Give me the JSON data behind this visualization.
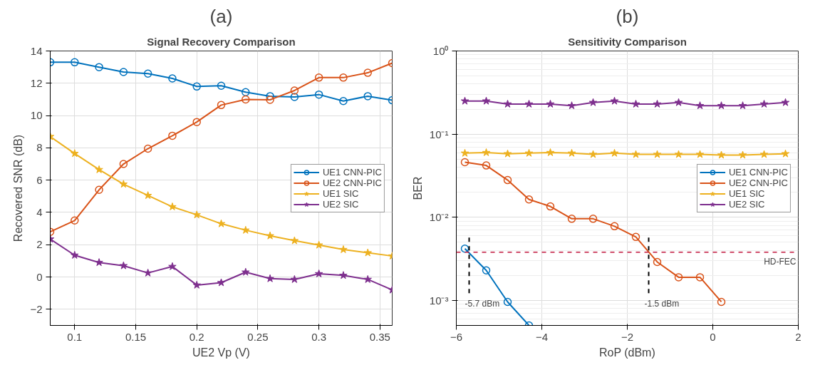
{
  "chart_data": [
    {
      "type": "line",
      "title": "(a)",
      "subtitle": "Signal Recovery Comparison",
      "xlabel": "UE2 Vp (V)",
      "ylabel": "Recovered SNR (dB)",
      "x": [
        0.08,
        0.1,
        0.12,
        0.14,
        0.16,
        0.18,
        0.2,
        0.22,
        0.24,
        0.26,
        0.28,
        0.3,
        0.32,
        0.34,
        0.36
      ],
      "series": [
        {
          "name": "UE1 CNN-PIC",
          "color": "#0072bd",
          "marker": "circle",
          "values": [
            13.3,
            13.3,
            13.0,
            12.7,
            12.6,
            12.3,
            11.8,
            11.85,
            11.45,
            11.2,
            11.15,
            11.3,
            10.9,
            11.2,
            10.95
          ]
        },
        {
          "name": "UE2 CNN-PIC",
          "color": "#d95319",
          "marker": "circle",
          "values": [
            2.8,
            3.5,
            5.4,
            7.0,
            7.95,
            8.75,
            9.6,
            10.65,
            11.0,
            10.98,
            11.55,
            12.35,
            12.35,
            12.65,
            13.25
          ]
        },
        {
          "name": "UE1 SIC",
          "color": "#edb120",
          "marker": "star",
          "values": [
            8.7,
            7.65,
            6.65,
            5.75,
            5.05,
            4.35,
            3.85,
            3.3,
            2.9,
            2.55,
            2.25,
            1.98,
            1.7,
            1.5,
            1.3
          ]
        },
        {
          "name": "UE2 SIC",
          "color": "#7e2f8e",
          "marker": "star",
          "values": [
            2.35,
            1.35,
            0.9,
            0.7,
            0.25,
            0.65,
            -0.5,
            -0.35,
            0.3,
            -0.1,
            -0.15,
            0.2,
            0.1,
            -0.15,
            -0.8
          ]
        }
      ],
      "xlim": [
        0.08,
        0.36
      ],
      "xticks": [
        0.1,
        0.15,
        0.2,
        0.25,
        0.3,
        0.35
      ],
      "ylim": [
        -3,
        14
      ],
      "yticks": [
        -2,
        0,
        2,
        4,
        6,
        8,
        10,
        12,
        14
      ],
      "grid": true,
      "legend": "right",
      "line_style": "solid"
    },
    {
      "type": "line",
      "title": "(b)",
      "subtitle": "Sensitivity Comparison",
      "xlabel": "RoP (dBm)",
      "ylabel": "BER",
      "log": "y",
      "x": [
        -5.8,
        -5.3,
        -4.8,
        -4.3,
        -3.8,
        -3.3,
        -2.8,
        -2.3,
        -1.8,
        -1.3,
        -0.8,
        -0.3,
        0.2,
        0.7,
        1.2,
        1.7
      ],
      "series": [
        {
          "name": "UE1 CNN-PIC",
          "color": "#0072bd",
          "marker": "circle",
          "values": [
            0.0042,
            0.0023,
            0.00096,
            0.0005,
            null,
            null,
            null,
            null,
            null,
            null,
            null,
            null,
            null,
            null,
            null,
            null
          ]
        },
        {
          "name": "UE2 CNN-PIC",
          "color": "#d95319",
          "marker": "circle",
          "values": [
            0.046,
            0.042,
            0.028,
            0.0164,
            0.0135,
            0.0096,
            0.0096,
            0.0078,
            0.0058,
            0.0029,
            0.0019,
            0.0019,
            0.00096,
            null,
            null,
            null
          ]
        },
        {
          "name": "UE1 SIC",
          "color": "#edb120",
          "marker": "star",
          "values": [
            0.059,
            0.06,
            0.058,
            0.059,
            0.06,
            0.059,
            0.057,
            0.059,
            0.057,
            0.057,
            0.057,
            0.057,
            0.056,
            0.056,
            0.057,
            0.058
          ]
        },
        {
          "name": "UE2 SIC",
          "color": "#7e2f8e",
          "marker": "star",
          "values": [
            0.25,
            0.25,
            0.23,
            0.23,
            0.23,
            0.22,
            0.24,
            0.25,
            0.23,
            0.23,
            0.24,
            0.22,
            0.22,
            0.22,
            0.23,
            0.24
          ]
        }
      ],
      "xlim": [
        -6,
        2
      ],
      "xticks": [
        -6,
        -4,
        -2,
        0,
        2
      ],
      "ylim": [
        0.0005,
        1
      ],
      "yticks": [
        {
          "value": 0.001,
          "label": "10⁻³"
        },
        {
          "value": 0.01,
          "label": "10⁻²"
        },
        {
          "value": 0.1,
          "label": "10⁻¹"
        },
        {
          "value": 1,
          "label": "10⁰"
        }
      ],
      "ref_lines": [
        {
          "axis": "y",
          "value": 0.0038,
          "label": "HD-FEC",
          "color": "#c0143c",
          "line_style": "dashed"
        },
        {
          "axis": "x",
          "value": -5.7,
          "label": "-5.7 dBm",
          "color": "#000000",
          "line_style": "dashed"
        },
        {
          "axis": "x",
          "value": -1.5,
          "label": "-1.5 dBm",
          "color": "#000000",
          "line_style": "dashed"
        }
      ],
      "grid": true,
      "legend": "right",
      "line_style": "solid"
    }
  ]
}
